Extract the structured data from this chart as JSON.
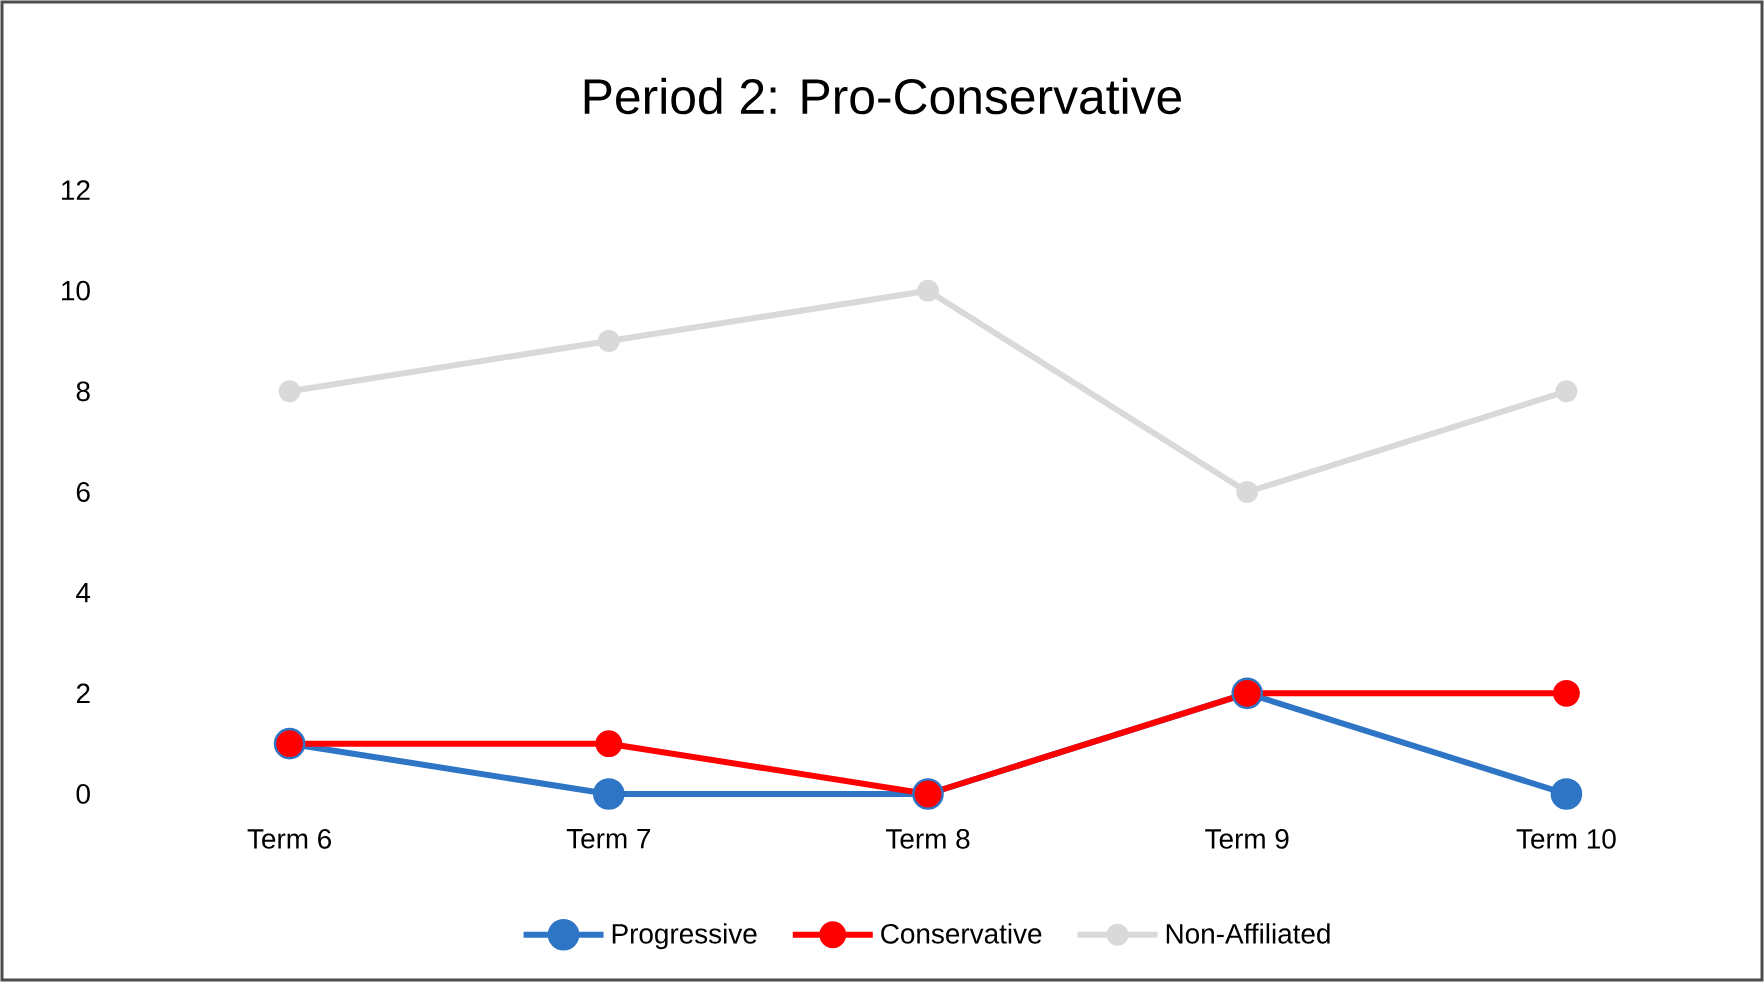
{
  "chart_data": {
    "type": "line",
    "title": "Period 2: Pro-Conservative",
    "categories": [
      "Term 6",
      "Term 7",
      "Term 8",
      "Term 9",
      "Term 10"
    ],
    "series": [
      {
        "name": "Progressive",
        "color": "#2e75c6",
        "values": [
          1,
          0,
          0,
          2,
          0
        ]
      },
      {
        "name": "Conservative",
        "color": "#ff0000",
        "values": [
          1,
          1,
          0,
          2,
          2
        ]
      },
      {
        "name": "Non-Affiliated",
        "color": "#d9d9d9",
        "values": [
          8,
          9,
          10,
          6,
          8
        ]
      }
    ],
    "ylim": [
      0,
      12
    ],
    "yticks": [
      0,
      2,
      4,
      6,
      8,
      10,
      12
    ],
    "grid": false,
    "legend": "bottom",
    "marker": "circle",
    "line_style": "solid"
  }
}
